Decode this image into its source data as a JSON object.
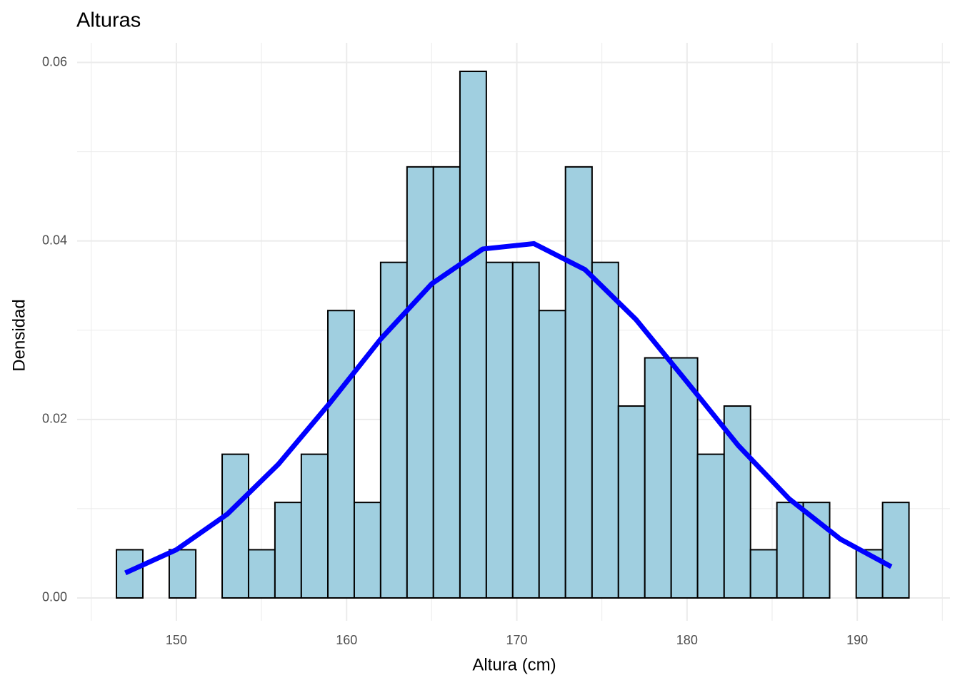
{
  "chart_data": {
    "type": "histogram",
    "title": "Alturas",
    "x_label": "Altura (cm)",
    "y_label": "Densidad",
    "bins": [
      146.48,
      148.03,
      149.58,
      151.14,
      152.69,
      154.24,
      155.79,
      157.34,
      158.9,
      160.45,
      162.0,
      163.55,
      165.1,
      166.66,
      168.21,
      169.76,
      171.31,
      172.86,
      174.42,
      175.97,
      177.52,
      179.07,
      180.62,
      182.18,
      183.73,
      185.28,
      186.83,
      188.38,
      189.94,
      191.49,
      193.04
    ],
    "values": [
      0.0054,
      0,
      0.0054,
      0,
      0.0161,
      0.0054,
      0.0107,
      0.0161,
      0.0322,
      0.0107,
      0.0376,
      0.0483,
      0.0483,
      0.059,
      0.0376,
      0.0376,
      0.0322,
      0.0483,
      0.0376,
      0.0215,
      0.0269,
      0.0269,
      0.0161,
      0.0215,
      0.0054,
      0.0107,
      0.0107,
      0,
      0.0054,
      0.0107
    ],
    "color": "#a0cfe0",
    "edge_color": "#000000",
    "curve": {
      "color": "#0000ff",
      "x": [
        147,
        150,
        153,
        156,
        159,
        162,
        165,
        168,
        171,
        174,
        177,
        180,
        183,
        186,
        189,
        192
      ],
      "values": [
        0.0028,
        0.0054,
        0.0094,
        0.015,
        0.0218,
        0.029,
        0.0352,
        0.0391,
        0.0397,
        0.0368,
        0.0312,
        0.0242,
        0.0171,
        0.0111,
        0.0066,
        0.0035
      ]
    },
    "xlim": [
      144.17,
      195.45
    ],
    "ylim": [
      -0.00256,
      0.0622
    ],
    "xticks": [
      150,
      160,
      170,
      180,
      190
    ],
    "yticks": [
      {
        "value": 0,
        "label": "0.00"
      },
      {
        "value": 0.02,
        "label": "0.02"
      },
      {
        "value": 0.04,
        "label": "0.04"
      },
      {
        "value": 0.06,
        "label": "0.06"
      }
    ],
    "x_minor_ticks": [
      145,
      155,
      165,
      175,
      185,
      195
    ],
    "y_minor_ticks": [
      0.01,
      0.03,
      0.05
    ],
    "grid": true
  }
}
